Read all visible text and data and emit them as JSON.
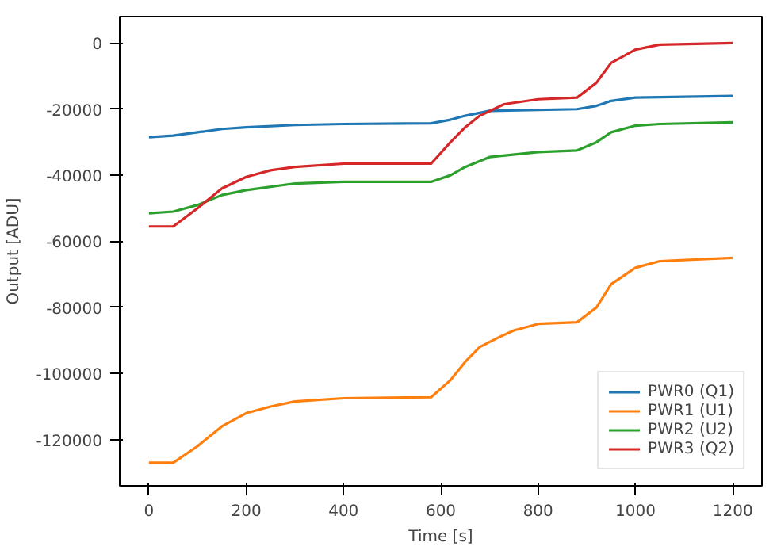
{
  "chart_data": {
    "type": "line",
    "xlabel": "Time [s]",
    "ylabel": "Output [ADU]",
    "xlim": [
      -60,
      1260
    ],
    "ylim": [
      -134000,
      8000
    ],
    "xticks": [
      0,
      200,
      400,
      600,
      800,
      1000,
      1200
    ],
    "yticks": [
      -120000,
      -100000,
      -80000,
      -60000,
      -40000,
      -20000,
      0
    ],
    "grid": false,
    "legend": "bottom right",
    "line_style": "solid",
    "marker": "none",
    "series": [
      {
        "name": "PWR0 (Q1)",
        "color": "#1f77b4",
        "x": [
          0,
          50,
          100,
          150,
          200,
          300,
          400,
          580,
          620,
          650,
          700,
          880,
          920,
          950,
          1000,
          1200
        ],
        "values": [
          -28500,
          -28000,
          -27000,
          -26000,
          -25500,
          -24800,
          -24500,
          -24300,
          -23200,
          -22000,
          -20500,
          -20000,
          -19000,
          -17500,
          -16500,
          -16000
        ]
      },
      {
        "name": "PWR1 (U1)",
        "color": "#ff7f0e",
        "x": [
          0,
          50,
          100,
          150,
          200,
          250,
          300,
          400,
          580,
          620,
          650,
          680,
          720,
          750,
          800,
          880,
          920,
          950,
          1000,
          1050,
          1200
        ],
        "values": [
          -127000,
          -127000,
          -122000,
          -116000,
          -112000,
          -110000,
          -108500,
          -107500,
          -107200,
          -102000,
          -96500,
          -92000,
          -89000,
          -87000,
          -85000,
          -84500,
          -80000,
          -73000,
          -68000,
          -66000,
          -65000
        ]
      },
      {
        "name": "PWR2 (U2)",
        "color": "#2ca02c",
        "x": [
          0,
          50,
          100,
          150,
          200,
          300,
          400,
          580,
          620,
          650,
          700,
          800,
          880,
          920,
          950,
          1000,
          1050,
          1200
        ],
        "values": [
          -51500,
          -51000,
          -49000,
          -46000,
          -44500,
          -42500,
          -42000,
          -42000,
          -40000,
          -37500,
          -34500,
          -33000,
          -32500,
          -30000,
          -27000,
          -25000,
          -24500,
          -24000
        ]
      },
      {
        "name": "PWR3 (Q2)",
        "color": "#d62728",
        "x": [
          0,
          50,
          100,
          150,
          200,
          250,
          300,
          400,
          580,
          620,
          650,
          680,
          730,
          800,
          880,
          920,
          950,
          1000,
          1050,
          1200
        ],
        "values": [
          -55500,
          -55500,
          -50000,
          -44000,
          -40500,
          -38500,
          -37500,
          -36500,
          -36500,
          -30000,
          -25500,
          -22000,
          -18500,
          -17000,
          -16500,
          -12000,
          -6000,
          -2000,
          -500,
          0
        ]
      }
    ]
  }
}
